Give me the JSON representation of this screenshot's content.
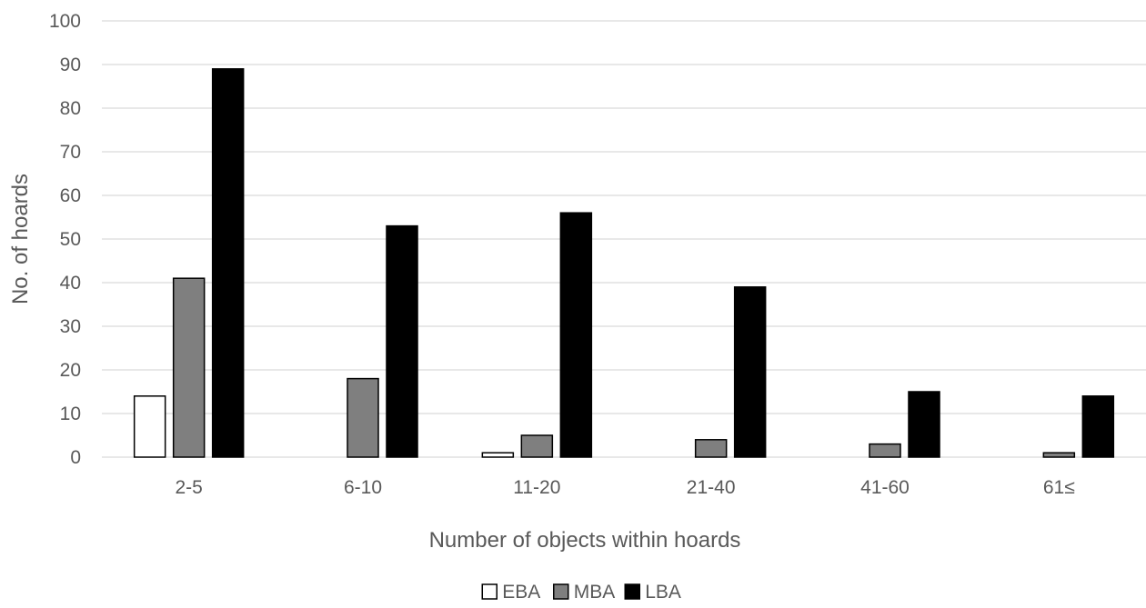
{
  "chart_data": {
    "type": "bar",
    "title": "",
    "xlabel": "Number of objects within hoards",
    "ylabel": "No. of hoards",
    "categories": [
      "2-5",
      "6-10",
      "11-20",
      "21-40",
      "41-60",
      "61≤"
    ],
    "series": [
      {
        "name": "EBA",
        "color": "#ffffff",
        "values": [
          14,
          0,
          1,
          0,
          0,
          0
        ]
      },
      {
        "name": "MBA",
        "color": "#7f7f7f",
        "values": [
          41,
          18,
          5,
          4,
          3,
          1
        ]
      },
      {
        "name": "LBA",
        "color": "#000000",
        "values": [
          89,
          53,
          56,
          39,
          15,
          14
        ]
      }
    ],
    "ylim": [
      0,
      100
    ],
    "ytick_step": 10,
    "grid": true,
    "legend_position": "bottom"
  }
}
